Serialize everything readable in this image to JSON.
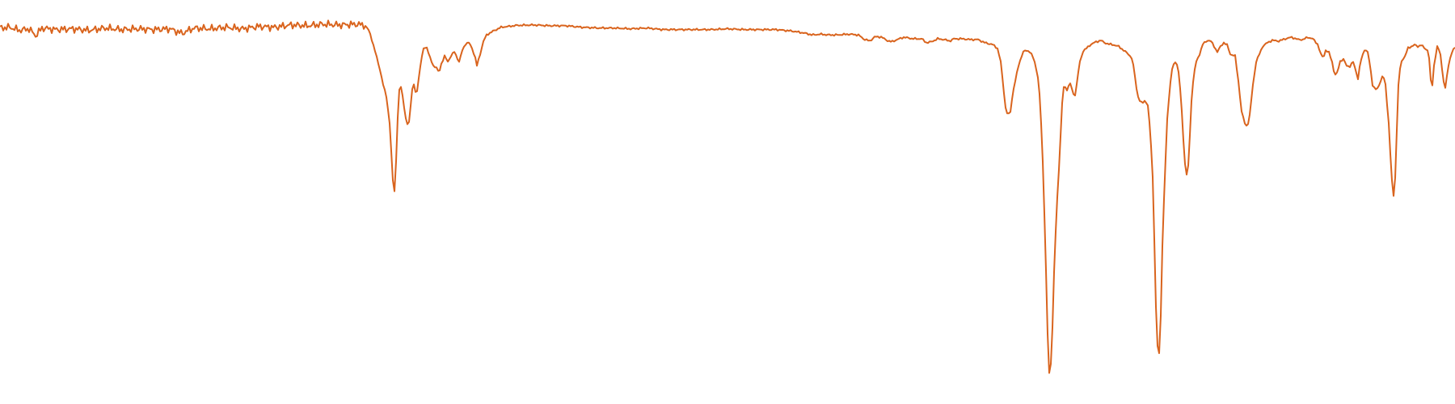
{
  "chart_data": {
    "type": "line",
    "xlim": [
      0,
      1800
    ],
    "ylim": [
      0,
      1
    ],
    "grid": false,
    "series": [
      {
        "color": "#d9641e",
        "points": [
          [
            0,
            0.948
          ],
          [
            12,
            0.95
          ],
          [
            24,
            0.942
          ],
          [
            36,
            0.946
          ],
          [
            44,
            0.928
          ],
          [
            52,
            0.948
          ],
          [
            70,
            0.944
          ],
          [
            90,
            0.946
          ],
          [
            110,
            0.942
          ],
          [
            130,
            0.948
          ],
          [
            150,
            0.944
          ],
          [
            170,
            0.946
          ],
          [
            190,
            0.944
          ],
          [
            210,
            0.946
          ],
          [
            225,
            0.934
          ],
          [
            240,
            0.948
          ],
          [
            260,
            0.946
          ],
          [
            280,
            0.95
          ],
          [
            300,
            0.946
          ],
          [
            320,
            0.952
          ],
          [
            340,
            0.95
          ],
          [
            360,
            0.956
          ],
          [
            380,
            0.954
          ],
          [
            400,
            0.958
          ],
          [
            420,
            0.956
          ],
          [
            440,
            0.958
          ],
          [
            450,
            0.956
          ],
          [
            457,
            0.94
          ],
          [
            461,
            0.91
          ],
          [
            465,
            0.88
          ],
          [
            470,
            0.84
          ],
          [
            474,
            0.8
          ],
          [
            478,
            0.77
          ],
          [
            482,
            0.7
          ],
          [
            485,
            0.59
          ],
          [
            487,
            0.51
          ],
          [
            489,
            0.54
          ],
          [
            491,
            0.66
          ],
          [
            493,
            0.77
          ],
          [
            495,
            0.8
          ],
          [
            497,
            0.79
          ],
          [
            500,
            0.74
          ],
          [
            503,
            0.7
          ],
          [
            505,
            0.69
          ],
          [
            507,
            0.72
          ],
          [
            509,
            0.77
          ],
          [
            511,
            0.81
          ],
          [
            513,
            0.79
          ],
          [
            515,
            0.77
          ],
          [
            517,
            0.8
          ],
          [
            520,
            0.85
          ],
          [
            524,
            0.895
          ],
          [
            528,
            0.898
          ],
          [
            532,
            0.87
          ],
          [
            536,
            0.85
          ],
          [
            540,
            0.845
          ],
          [
            543,
            0.83
          ],
          [
            546,
            0.855
          ],
          [
            550,
            0.875
          ],
          [
            554,
            0.86
          ],
          [
            558,
            0.876
          ],
          [
            562,
            0.886
          ],
          [
            568,
            0.86
          ],
          [
            572,
            0.89
          ],
          [
            576,
            0.907
          ],
          [
            580,
            0.91
          ],
          [
            584,
            0.895
          ],
          [
            588,
            0.87
          ],
          [
            590,
            0.85
          ],
          [
            594,
            0.88
          ],
          [
            598,
            0.913
          ],
          [
            602,
            0.93
          ],
          [
            610,
            0.94
          ],
          [
            620,
            0.95
          ],
          [
            640,
            0.955
          ],
          [
            660,
            0.956
          ],
          [
            680,
            0.954
          ],
          [
            700,
            0.954
          ],
          [
            720,
            0.95
          ],
          [
            740,
            0.948
          ],
          [
            760,
            0.948
          ],
          [
            780,
            0.946
          ],
          [
            800,
            0.948
          ],
          [
            820,
            0.944
          ],
          [
            840,
            0.944
          ],
          [
            860,
            0.944
          ],
          [
            880,
            0.944
          ],
          [
            900,
            0.946
          ],
          [
            920,
            0.944
          ],
          [
            940,
            0.944
          ],
          [
            960,
            0.944
          ],
          [
            980,
            0.94
          ],
          [
            995,
            0.935
          ],
          [
            1005,
            0.93
          ],
          [
            1015,
            0.932
          ],
          [
            1025,
            0.93
          ],
          [
            1035,
            0.93
          ],
          [
            1050,
            0.932
          ],
          [
            1062,
            0.93
          ],
          [
            1068,
            0.92
          ],
          [
            1076,
            0.914
          ],
          [
            1082,
            0.925
          ],
          [
            1090,
            0.925
          ],
          [
            1097,
            0.916
          ],
          [
            1103,
            0.912
          ],
          [
            1110,
            0.918
          ],
          [
            1118,
            0.924
          ],
          [
            1130,
            0.92
          ],
          [
            1140,
            0.92
          ],
          [
            1146,
            0.91
          ],
          [
            1152,
            0.912
          ],
          [
            1160,
            0.92
          ],
          [
            1168,
            0.918
          ],
          [
            1175,
            0.914
          ],
          [
            1180,
            0.92
          ],
          [
            1190,
            0.92
          ],
          [
            1200,
            0.918
          ],
          [
            1210,
            0.918
          ],
          [
            1218,
            0.91
          ],
          [
            1228,
            0.905
          ],
          [
            1234,
            0.895
          ],
          [
            1238,
            0.86
          ],
          [
            1241,
            0.8
          ],
          [
            1244,
            0.74
          ],
          [
            1247,
            0.72
          ],
          [
            1250,
            0.73
          ],
          [
            1253,
            0.78
          ],
          [
            1256,
            0.81
          ],
          [
            1258,
            0.83
          ],
          [
            1260,
            0.85
          ],
          [
            1263,
            0.87
          ],
          [
            1266,
            0.886
          ],
          [
            1270,
            0.89
          ],
          [
            1274,
            0.886
          ],
          [
            1277,
            0.876
          ],
          [
            1280,
            0.86
          ],
          [
            1284,
            0.82
          ],
          [
            1287,
            0.75
          ],
          [
            1290,
            0.6
          ],
          [
            1293,
            0.4
          ],
          [
            1296,
            0.15
          ],
          [
            1298,
            0.05
          ],
          [
            1299,
            0.045
          ],
          [
            1301,
            0.1
          ],
          [
            1304,
            0.31
          ],
          [
            1307,
            0.47
          ],
          [
            1310,
            0.58
          ],
          [
            1313,
            0.71
          ],
          [
            1315,
            0.79
          ],
          [
            1317,
            0.8
          ],
          [
            1319,
            0.785
          ],
          [
            1321,
            0.79
          ],
          [
            1323,
            0.805
          ],
          [
            1325,
            0.8
          ],
          [
            1327,
            0.78
          ],
          [
            1329,
            0.77
          ],
          [
            1331,
            0.78
          ],
          [
            1333,
            0.82
          ],
          [
            1336,
            0.86
          ],
          [
            1340,
            0.888
          ],
          [
            1344,
            0.895
          ],
          [
            1350,
            0.906
          ],
          [
            1356,
            0.912
          ],
          [
            1362,
            0.916
          ],
          [
            1366,
            0.91
          ],
          [
            1372,
            0.906
          ],
          [
            1378,
            0.904
          ],
          [
            1384,
            0.9
          ],
          [
            1390,
            0.89
          ],
          [
            1396,
            0.88
          ],
          [
            1400,
            0.87
          ],
          [
            1403,
            0.84
          ],
          [
            1406,
            0.79
          ],
          [
            1409,
            0.76
          ],
          [
            1413,
            0.752
          ],
          [
            1417,
            0.76
          ],
          [
            1420,
            0.745
          ],
          [
            1423,
            0.68
          ],
          [
            1426,
            0.56
          ],
          [
            1428,
            0.4
          ],
          [
            1430,
            0.22
          ],
          [
            1432,
            0.12
          ],
          [
            1434,
            0.1
          ],
          [
            1436,
            0.2
          ],
          [
            1438,
            0.38
          ],
          [
            1441,
            0.56
          ],
          [
            1444,
            0.71
          ],
          [
            1447,
            0.79
          ],
          [
            1450,
            0.84
          ],
          [
            1453,
            0.86
          ],
          [
            1456,
            0.855
          ],
          [
            1459,
            0.82
          ],
          [
            1462,
            0.73
          ],
          [
            1465,
            0.62
          ],
          [
            1467,
            0.57
          ],
          [
            1469,
            0.56
          ],
          [
            1471,
            0.62
          ],
          [
            1474,
            0.76
          ],
          [
            1477,
            0.83
          ],
          [
            1480,
            0.86
          ],
          [
            1484,
            0.88
          ],
          [
            1488,
            0.906
          ],
          [
            1494,
            0.916
          ],
          [
            1498,
            0.914
          ],
          [
            1502,
            0.9
          ],
          [
            1506,
            0.886
          ],
          [
            1510,
            0.9
          ],
          [
            1514,
            0.91
          ],
          [
            1518,
            0.904
          ],
          [
            1522,
            0.88
          ],
          [
            1528,
            0.875
          ],
          [
            1532,
            0.81
          ],
          [
            1536,
            0.73
          ],
          [
            1540,
            0.7
          ],
          [
            1543,
            0.69
          ],
          [
            1546,
            0.72
          ],
          [
            1550,
            0.8
          ],
          [
            1554,
            0.86
          ],
          [
            1558,
            0.88
          ],
          [
            1562,
            0.9
          ],
          [
            1568,
            0.91
          ],
          [
            1574,
            0.916
          ],
          [
            1582,
            0.914
          ],
          [
            1590,
            0.92
          ],
          [
            1598,
            0.924
          ],
          [
            1606,
            0.918
          ],
          [
            1612,
            0.918
          ],
          [
            1618,
            0.924
          ],
          [
            1624,
            0.92
          ],
          [
            1630,
            0.906
          ],
          [
            1634,
            0.88
          ],
          [
            1637,
            0.87
          ],
          [
            1640,
            0.89
          ],
          [
            1644,
            0.884
          ],
          [
            1648,
            0.86
          ],
          [
            1651,
            0.825
          ],
          [
            1654,
            0.83
          ],
          [
            1658,
            0.862
          ],
          [
            1662,
            0.866
          ],
          [
            1666,
            0.85
          ],
          [
            1670,
            0.848
          ],
          [
            1674,
            0.86
          ],
          [
            1678,
            0.832
          ],
          [
            1680,
            0.815
          ],
          [
            1683,
            0.86
          ],
          [
            1688,
            0.892
          ],
          [
            1692,
            0.885
          ],
          [
            1695,
            0.85
          ],
          [
            1698,
            0.8
          ],
          [
            1701,
            0.788
          ],
          [
            1704,
            0.79
          ],
          [
            1708,
            0.81
          ],
          [
            1711,
            0.826
          ],
          [
            1714,
            0.8
          ],
          [
            1718,
            0.7
          ],
          [
            1721,
            0.58
          ],
          [
            1723,
            0.52
          ],
          [
            1724,
            0.51
          ],
          [
            1726,
            0.56
          ],
          [
            1728,
            0.68
          ],
          [
            1730,
            0.8
          ],
          [
            1733,
            0.86
          ],
          [
            1738,
            0.874
          ],
          [
            1742,
            0.896
          ],
          [
            1746,
            0.9
          ],
          [
            1750,
            0.904
          ],
          [
            1754,
            0.9
          ],
          [
            1758,
            0.904
          ],
          [
            1762,
            0.896
          ],
          [
            1766,
            0.89
          ],
          [
            1768,
            0.87
          ],
          [
            1770,
            0.81
          ],
          [
            1772,
            0.8
          ],
          [
            1774,
            0.85
          ],
          [
            1778,
            0.9
          ],
          [
            1782,
            0.88
          ],
          [
            1785,
            0.82
          ],
          [
            1788,
            0.79
          ],
          [
            1791,
            0.84
          ],
          [
            1795,
            0.88
          ],
          [
            1800,
            0.898
          ]
        ]
      }
    ]
  }
}
